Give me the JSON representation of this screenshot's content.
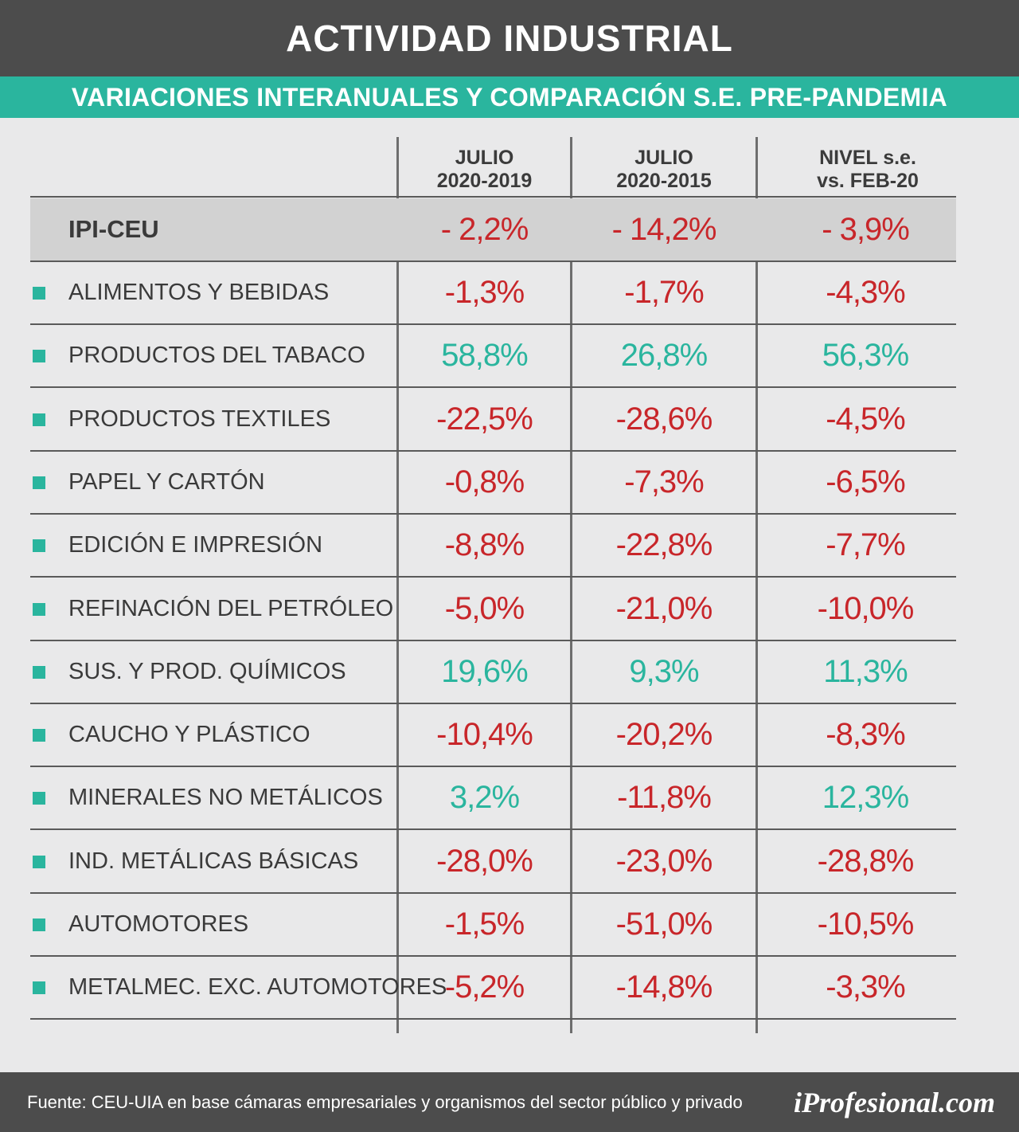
{
  "header": {
    "title": "ACTIVIDAD INDUSTRIAL",
    "subtitle": "VARIACIONES INTERANUALES Y COMPARACIÓN S.E. PRE-PANDEMIA"
  },
  "colors": {
    "negative": "#c8262a",
    "positive": "#2ab59e",
    "header_bg": "#4c4c4c",
    "accent": "#2ab59e"
  },
  "chart_data": {
    "type": "table",
    "columns": [
      {
        "line1": "JULIO",
        "line2": "2020-2019"
      },
      {
        "line1": "JULIO",
        "line2": "2020-2015"
      },
      {
        "line1": "NIVEL s.e.",
        "line2": "vs. FEB-20"
      }
    ],
    "summary": {
      "label": "IPI-CEU",
      "values": [
        "- 2,2%",
        "- 14,2%",
        "- 3,9%"
      ],
      "signs": [
        "neg",
        "neg",
        "neg"
      ]
    },
    "rows": [
      {
        "label": "ALIMENTOS Y BEBIDAS",
        "values": [
          "-1,3%",
          "-1,7%",
          "-4,3%"
        ],
        "signs": [
          "neg",
          "neg",
          "neg"
        ]
      },
      {
        "label": "PRODUCTOS DEL TABACO",
        "values": [
          "58,8%",
          "26,8%",
          "56,3%"
        ],
        "signs": [
          "pos",
          "pos",
          "pos"
        ]
      },
      {
        "label": "PRODUCTOS TEXTILES",
        "values": [
          "-22,5%",
          "-28,6%",
          "-4,5%"
        ],
        "signs": [
          "neg",
          "neg",
          "neg"
        ]
      },
      {
        "label": "PAPEL Y CARTÓN",
        "values": [
          "-0,8%",
          "-7,3%",
          "-6,5%"
        ],
        "signs": [
          "neg",
          "neg",
          "neg"
        ]
      },
      {
        "label": "EDICIÓN E IMPRESIÓN",
        "values": [
          "-8,8%",
          "-22,8%",
          "-7,7%"
        ],
        "signs": [
          "neg",
          "neg",
          "neg"
        ]
      },
      {
        "label": "REFINACIÓN DEL PETRÓLEO",
        "values": [
          "-5,0%",
          "-21,0%",
          "-10,0%"
        ],
        "signs": [
          "neg",
          "neg",
          "neg"
        ]
      },
      {
        "label": "SUS. Y PROD. QUÍMICOS",
        "values": [
          "19,6%",
          "9,3%",
          "11,3%"
        ],
        "signs": [
          "pos",
          "pos",
          "pos"
        ]
      },
      {
        "label": "CAUCHO Y PLÁSTICO",
        "values": [
          "-10,4%",
          "-20,2%",
          "-8,3%"
        ],
        "signs": [
          "neg",
          "neg",
          "neg"
        ]
      },
      {
        "label": "MINERALES NO METÁLICOS",
        "values": [
          "3,2%",
          "-11,8%",
          "12,3%"
        ],
        "signs": [
          "pos",
          "neg",
          "pos"
        ]
      },
      {
        "label": "IND. METÁLICAS BÁSICAS",
        "values": [
          "-28,0%",
          "-23,0%",
          "-28,8%"
        ],
        "signs": [
          "neg",
          "neg",
          "neg"
        ]
      },
      {
        "label": "AUTOMOTORES",
        "values": [
          "-1,5%",
          "-51,0%",
          "-10,5%"
        ],
        "signs": [
          "neg",
          "neg",
          "neg"
        ]
      },
      {
        "label": "METALMEC. EXC. AUTOMOTORES",
        "values": [
          "-5,2%",
          "-14,8%",
          "-3,3%"
        ],
        "signs": [
          "neg",
          "neg",
          "neg"
        ]
      }
    ]
  },
  "footer": {
    "source": "Fuente: CEU-UIA en base cámaras empresariales y organismos del sector público y privado",
    "logo": "iProfesional.com"
  }
}
